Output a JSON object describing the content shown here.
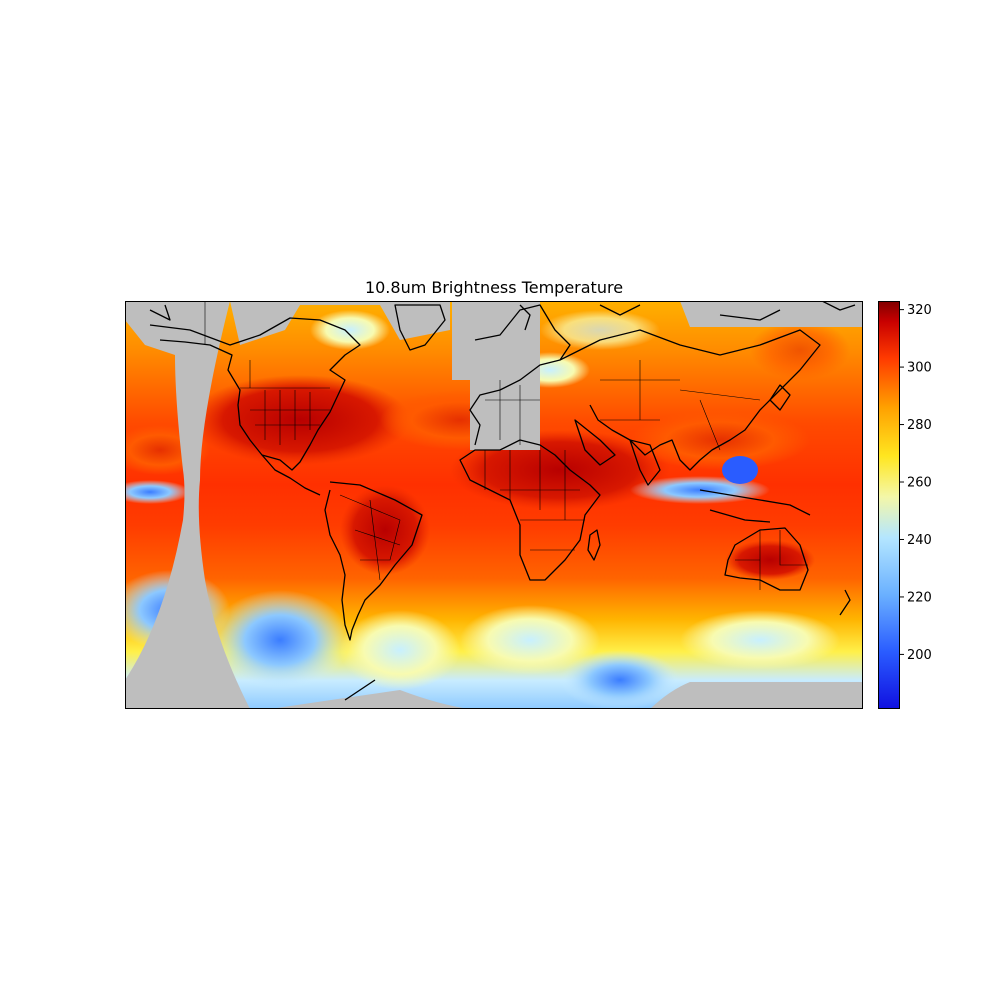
{
  "title": "10.8um Brightness Temperature",
  "colors": {
    "nodata": "#bebebe",
    "frame": "#000000",
    "coastline": "#000000"
  },
  "map": {
    "projection": "plate-carree",
    "lon_range": [
      -180,
      180
    ],
    "lat_range": [
      -81,
      81
    ],
    "fill": "brightness temperature from geostationary satellites",
    "coastlines": true,
    "country_borders": true,
    "state_borders": true
  },
  "colorbar": {
    "orientation": "vertical",
    "colormap": "jet",
    "vmin": 181,
    "vmax": 323,
    "ticks": [
      200,
      220,
      240,
      260,
      280,
      300,
      320
    ],
    "tick_labels": [
      "200",
      "220",
      "240",
      "260",
      "280",
      "300",
      "320"
    ]
  }
}
